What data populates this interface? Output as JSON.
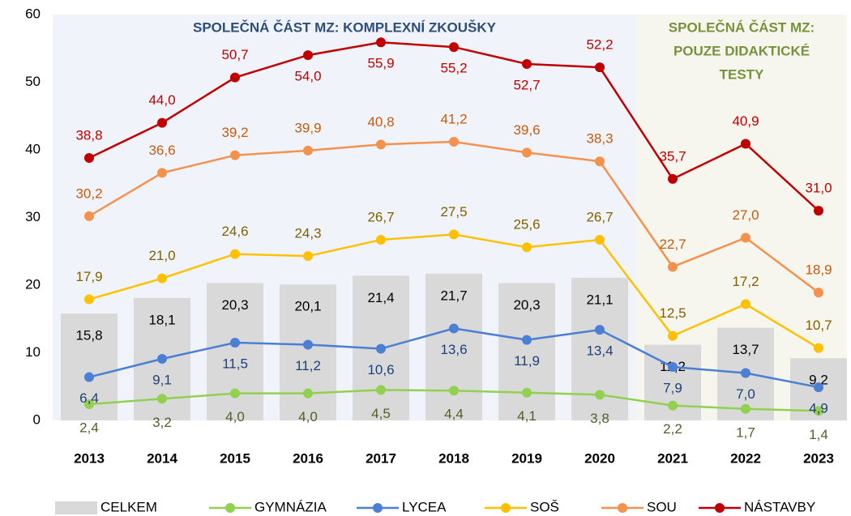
{
  "chart_data": {
    "type": "line",
    "annotations": [
      {
        "lines": [
          "SPOLEČNÁ ČÁST MZ: KOMPLEXNÍ ZKOUŠKY"
        ],
        "color": "#2e4d7b"
      },
      {
        "lines": [
          "SPOLEČNÁ ČÁST MZ:",
          "POUZE DIDAKTICKÉ",
          "TESTY"
        ],
        "color": "#76933c"
      }
    ],
    "categories": [
      "2013",
      "2014",
      "2015",
      "2016",
      "2017",
      "2018",
      "2019",
      "2020",
      "2021",
      "2022",
      "2023"
    ],
    "ylim": [
      0,
      60
    ],
    "yticks": [
      0,
      10,
      20,
      30,
      40,
      50,
      60
    ],
    "series": [
      {
        "name": "CELKEM",
        "kind": "bar",
        "color": "#d9d9d9",
        "label_color": "#000000",
        "values": [
          15.8,
          18.1,
          20.3,
          20.1,
          21.4,
          21.7,
          20.3,
          21.1,
          11.2,
          13.7,
          9.2
        ],
        "value_labels": [
          "15,8",
          "18,1",
          "20,3",
          "20,1",
          "21,4",
          "21,7",
          "20,3",
          "21,1",
          "11,2",
          "13,7",
          "9,2"
        ]
      },
      {
        "name": "GYMNÁZIA",
        "color": "#92d050",
        "label_color": "#4f6228",
        "values": [
          2.4,
          3.2,
          4.0,
          4.0,
          4.5,
          4.4,
          4.1,
          3.8,
          2.2,
          1.7,
          1.4
        ],
        "value_labels": [
          "2,4",
          "3,2",
          "4,0",
          "4,0",
          "4,5",
          "4,4",
          "4,1",
          "3,8",
          "2,2",
          "1,7",
          "1,4"
        ]
      },
      {
        "name": "LYCEA",
        "color": "#4a7fd4",
        "label_color": "#1f3f7a",
        "values": [
          6.4,
          9.1,
          11.5,
          11.2,
          10.6,
          13.6,
          11.9,
          13.4,
          7.9,
          7.0,
          4.9
        ],
        "value_labels": [
          "6,4",
          "9,1",
          "11,5",
          "11,2",
          "10,6",
          "13,6",
          "11,9",
          "13,4",
          "7,9",
          "7,0",
          "4,9"
        ]
      },
      {
        "name": "SOŠ",
        "color": "#ffc000",
        "label_color": "#7f6000",
        "values": [
          17.9,
          21.0,
          24.6,
          24.3,
          26.7,
          27.5,
          25.6,
          26.7,
          12.5,
          17.2,
          10.7
        ],
        "value_labels": [
          "17,9",
          "21,0",
          "24,6",
          "24,3",
          "26,7",
          "27,5",
          "25,6",
          "26,7",
          "12,5",
          "17,2",
          "10,7"
        ]
      },
      {
        "name": "SOU",
        "color": "#f4914d",
        "label_color": "#c55a11",
        "values": [
          30.2,
          36.6,
          39.2,
          39.9,
          40.8,
          41.2,
          39.6,
          38.3,
          22.7,
          27.0,
          18.9
        ],
        "value_labels": [
          "30,2",
          "36,6",
          "39,2",
          "39,9",
          "40,8",
          "41,2",
          "39,6",
          "38,3",
          "22,7",
          "27,0",
          "18,9"
        ]
      },
      {
        "name": "NÁSTAVBY",
        "color": "#c00000",
        "label_color": "#c00000",
        "values": [
          38.8,
          44.0,
          50.7,
          54.0,
          55.9,
          55.2,
          52.7,
          52.2,
          35.7,
          40.9,
          31.0
        ],
        "value_labels": [
          "38,8",
          "44,0",
          "50,7",
          "54,0",
          "55,9",
          "55,2",
          "52,7",
          "52,2",
          "35,7",
          "40,9",
          "31,0"
        ]
      }
    ]
  }
}
